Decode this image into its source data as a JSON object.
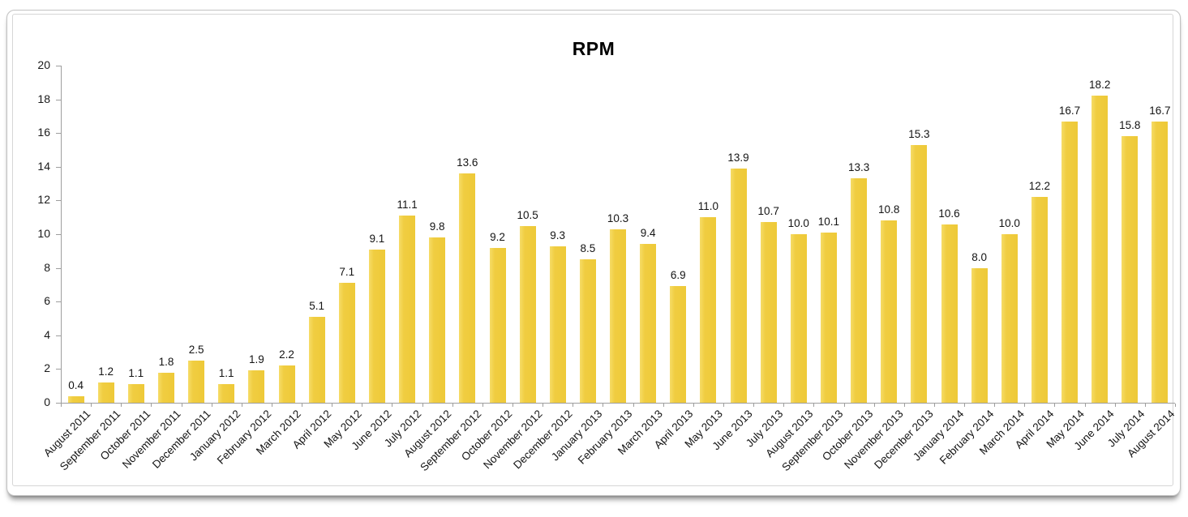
{
  "chart_data": {
    "type": "bar",
    "title": "RPM",
    "xlabel": "",
    "ylabel": "",
    "ylim": [
      0,
      20
    ],
    "yticks": [
      0,
      2,
      4,
      6,
      8,
      10,
      12,
      14,
      16,
      18,
      20
    ],
    "grid": false,
    "legend": "none",
    "bar_color": "#F0CD41",
    "axis_color": "#9E9E9E",
    "text_color": "#141414",
    "categories": [
      "August 2011",
      "September 2011",
      "October 2011",
      "November 2011",
      "December 2011",
      "January 2012",
      "February 2012",
      "March 2012",
      "April 2012",
      "May 2012",
      "June 2012",
      "July 2012",
      "August 2012",
      "September 2012",
      "October 2012",
      "November 2012",
      "December 2012",
      "January 2013",
      "February 2013",
      "March 2013",
      "April 2013",
      "May 2013",
      "June 2013",
      "July 2013",
      "August 2013",
      "September 2013",
      "October 2013",
      "November 2013",
      "December 2013",
      "January 2014",
      "February 2014",
      "March 2014",
      "April 2014",
      "May 2014",
      "June 2014",
      "July 2014",
      "August 2014"
    ],
    "values": [
      0.4,
      1.2,
      1.1,
      1.8,
      2.5,
      1.1,
      1.9,
      2.2,
      5.1,
      7.1,
      9.1,
      11.1,
      9.8,
      13.6,
      9.2,
      10.5,
      9.3,
      8.5,
      10.3,
      9.4,
      6.9,
      11.0,
      13.9,
      10.7,
      10.0,
      10.1,
      13.3,
      10.8,
      15.3,
      10.6,
      8.0,
      10.0,
      12.2,
      16.7,
      18.2,
      15.8,
      16.7
    ],
    "value_labels": [
      "0.4",
      "1.2",
      "1.1",
      "1.8",
      "2.5",
      "1.1",
      "1.9",
      "2.2",
      "5.1",
      "7.1",
      "9.1",
      "11.1",
      "9.8",
      "13.6",
      "9.2",
      "10.5",
      "9.3",
      "8.5",
      "10.3",
      "9.4",
      "6.9",
      "11.0",
      "13.9",
      "10.7",
      "10.0",
      "10.1",
      "13.3",
      "10.8",
      "15.3",
      "10.6",
      "8.0",
      "10.0",
      "12.2",
      "16.7",
      "18.2",
      "15.8",
      "16.7"
    ]
  }
}
